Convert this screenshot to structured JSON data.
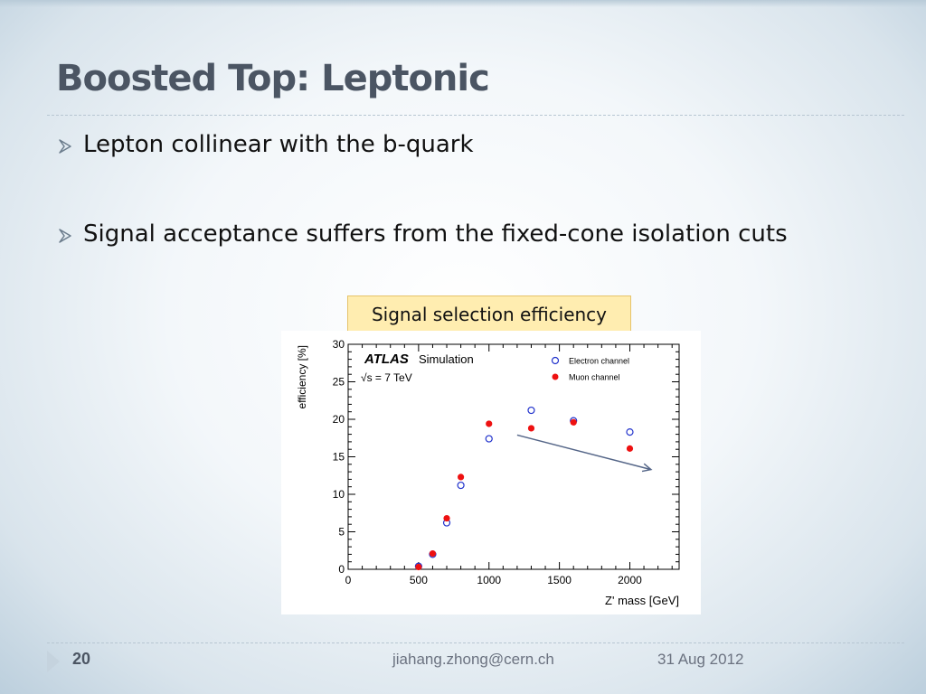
{
  "slide": {
    "title": "Boosted Top: Leptonic",
    "bullets": [
      "Lepton collinear with the b-quark",
      "Signal acceptance suffers from the fixed-cone isolation cuts"
    ],
    "caption": "Signal selection efficiency",
    "footer": {
      "page_number": "20",
      "email": "jiahang.zhong@cern.ch",
      "date": "31 Aug 2012"
    },
    "colors": {
      "title": "#4b5563",
      "caption_bg": "#ffedb0",
      "electron": "#2233cc",
      "muon": "#ee1111",
      "arrow": "#556688"
    }
  },
  "chart_data": {
    "type": "scatter",
    "xlabel": "Z' mass [GeV]",
    "ylabel": "efficiency [%]",
    "xlim": [
      0,
      2350
    ],
    "ylim": [
      0,
      30
    ],
    "xticks": [
      0,
      500,
      1000,
      1500,
      2000
    ],
    "yticks": [
      0,
      5,
      10,
      15,
      20,
      25,
      30
    ],
    "annotations": {
      "experiment": "ATLAS",
      "label": "Simulation",
      "energy": "√s = 7 TeV"
    },
    "legend_position": "top-right",
    "series": [
      {
        "name": "Electron channel",
        "marker": "open-circle",
        "color": "#2233cc",
        "points": [
          {
            "x": 500,
            "y": 0.4
          },
          {
            "x": 600,
            "y": 2.0
          },
          {
            "x": 700,
            "y": 6.2
          },
          {
            "x": 800,
            "y": 11.2
          },
          {
            "x": 1000,
            "y": 17.4
          },
          {
            "x": 1300,
            "y": 21.2
          },
          {
            "x": 1600,
            "y": 19.8
          },
          {
            "x": 2000,
            "y": 18.3
          }
        ]
      },
      {
        "name": "Muon channel",
        "marker": "filled-circle",
        "color": "#ee1111",
        "points": [
          {
            "x": 500,
            "y": 0.3
          },
          {
            "x": 600,
            "y": 2.1
          },
          {
            "x": 700,
            "y": 6.8
          },
          {
            "x": 800,
            "y": 12.3
          },
          {
            "x": 1000,
            "y": 19.4
          },
          {
            "x": 1300,
            "y": 18.8
          },
          {
            "x": 1600,
            "y": 19.6
          },
          {
            "x": 2000,
            "y": 16.1
          }
        ]
      }
    ],
    "trend_arrow": {
      "from": {
        "x": 1200,
        "y": 17.9
      },
      "to": {
        "x": 2150,
        "y": 13.3
      }
    }
  }
}
